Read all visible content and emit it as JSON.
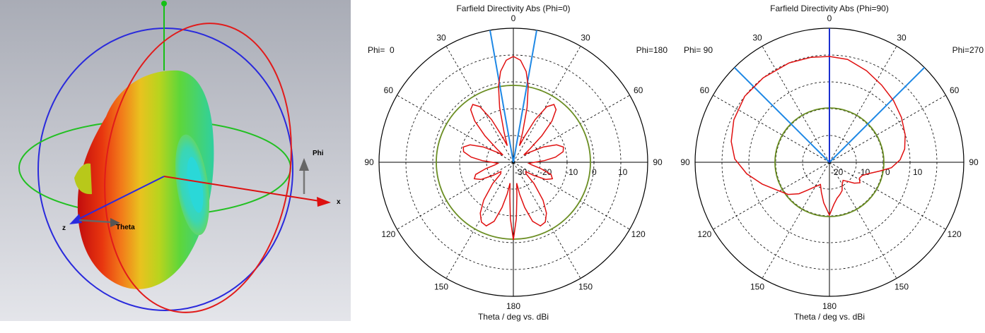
{
  "view3d": {
    "axis_labels": {
      "x": "x",
      "z": "z",
      "theta": "Theta",
      "phi": "Phi"
    },
    "colors": {
      "background_top": "#a9acb6",
      "background_bottom": "#e3e4e8",
      "ring_theta": "#e11b1b",
      "ring_phi_blue": "#2a2adc",
      "ring_equator": "#22c022",
      "axis_x": "#dd1010",
      "axis_y": "#16c016",
      "axis_z": "#2a2ae0"
    }
  },
  "polar_plots": [
    {
      "title": "Farfield Directivity Abs (Phi=0)",
      "xlabel": "Theta / deg vs. dBi",
      "phi_left": "Phi=  0",
      "phi_right": "Phi=180",
      "angle_labels": [
        "0",
        "30",
        "60",
        "90",
        "120",
        "150",
        "180",
        "150",
        "120",
        "90",
        "60",
        "30"
      ],
      "radial_labels": [
        "-30",
        "-20",
        "-10",
        "0",
        "10"
      ],
      "colors": {
        "pattern": "#e01010",
        "reference": "#6b8e23",
        "beam": "#1e88e5",
        "grid": "#000000"
      }
    },
    {
      "title": "Farfield Directivity Abs (Phi=90)",
      "xlabel": "Theta / deg vs. dBi",
      "phi_left": "Phi= 90",
      "phi_right": "Phi=270",
      "angle_labels": [
        "0",
        "30",
        "60",
        "90",
        "120",
        "150",
        "180",
        "150",
        "120",
        "90",
        "60",
        "30"
      ],
      "radial_labels": [
        "-20",
        "-10",
        "0",
        "10"
      ],
      "colors": {
        "pattern": "#e01010",
        "reference": "#6b8e23",
        "beam": "#1e88e5",
        "grid": "#000000"
      }
    }
  ]
}
